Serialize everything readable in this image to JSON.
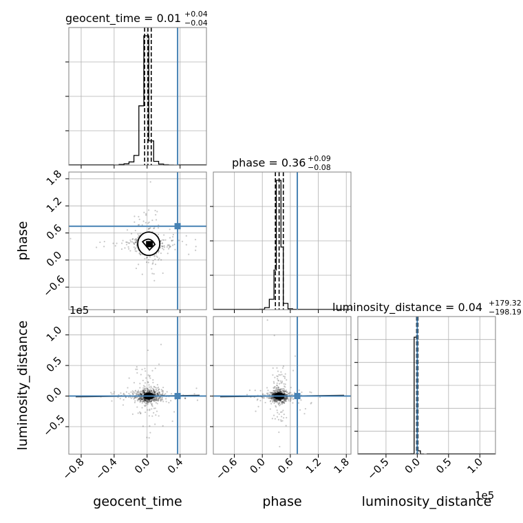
{
  "chart_data": {
    "type": "scatter",
    "subtype": "corner-plot",
    "parameters": [
      "geocent_time",
      "phase",
      "luminosity_distance"
    ],
    "injection": {
      "geocent_time": 0.37,
      "phase": 0.75,
      "luminosity_distance": 0
    },
    "grid": true,
    "panels": {
      "geocent_time_hist": {
        "title": {
          "prefix": "geocent_time = ",
          "value": "0.01",
          "plus": "+0.04",
          "minus": "−0.04"
        },
        "xlim": [
          -0.95,
          0.72
        ],
        "bins": [
          -0.4,
          -0.34,
          -0.28,
          -0.22,
          -0.16,
          -0.1,
          -0.04,
          0.02,
          0.08,
          0.14,
          0.2,
          0.26,
          0.32,
          0.38
        ],
        "counts": [
          0.3,
          1.2,
          2.5,
          6,
          18,
          110,
          240,
          45,
          7,
          2,
          0.8,
          0.3,
          0.2
        ],
        "quantiles": [
          -0.03,
          0.01,
          0.05
        ]
      },
      "phase_hist": {
        "title": {
          "prefix": "phase = ",
          "value": "0.36",
          "plus": "+0.09",
          "minus": "−0.08"
        },
        "xlim": [
          -1.05,
          1.9
        ],
        "bins": [
          -0.05,
          0.05,
          0.15,
          0.25,
          0.3,
          0.35,
          0.4,
          0.45,
          0.55,
          0.65
        ],
        "counts": [
          1,
          5,
          25,
          95,
          310,
          310,
          150,
          15,
          2
        ],
        "quantiles": [
          0.28,
          0.36,
          0.45
        ]
      },
      "luminosity_distance_hist": {
        "title": {
          "prefix": "luminosity_distance = ",
          "value": "0.04",
          "plus": "+179.32",
          "minus": "−198.19"
        },
        "xlim": [
          -0.95,
          1.25
        ],
        "bins": [
          -0.1,
          -0.05,
          0.0,
          0.05,
          0.1,
          0.15
        ],
        "counts": [
          1,
          280,
          8,
          0.5,
          0.2
        ],
        "quantiles": [
          -0.01,
          0.0,
          0.01
        ]
      }
    },
    "axes": {
      "geocent_time": {
        "label": "geocent_time",
        "ticks": [
          -0.8,
          -0.4,
          0.0,
          0.4
        ],
        "tick_labels": [
          "−0.8",
          "−0.4",
          "0.0",
          "0.4"
        ]
      },
      "phase_x": {
        "label": "phase",
        "ticks": [
          -0.6,
          0.0,
          0.6,
          1.2,
          1.8
        ],
        "tick_labels": [
          "−0.6",
          "0.0",
          "0.6",
          "1.2",
          "1.8"
        ]
      },
      "phase_y": {
        "label": "phase",
        "ylim": [
          -1.1,
          1.95
        ],
        "ticks": [
          -0.6,
          0.0,
          0.6,
          1.2,
          1.8
        ],
        "tick_labels": [
          "−0.6",
          "0.0",
          "0.6",
          "1.2",
          "1.8"
        ]
      },
      "luminosity_distance_x": {
        "label": "luminosity_distance",
        "offset": "1e5",
        "ticks": [
          -0.5,
          0.0,
          0.5,
          1.0
        ],
        "tick_labels": [
          "−0.5",
          "0.0",
          "0.5",
          "1.0"
        ]
      },
      "luminosity_distance_y": {
        "label": "luminosity_distance",
        "offset": "1e5",
        "ylim": [
          -0.95,
          1.3
        ],
        "ticks": [
          -0.5,
          0.0,
          0.5,
          1.0
        ],
        "tick_labels": [
          "−0.5",
          "0.0",
          "0.5",
          "1.0"
        ]
      }
    },
    "samples": {
      "geocent_time": {
        "center": 0.02,
        "sd": 0.07
      },
      "phase": {
        "center": 0.36,
        "sd": 0.09
      },
      "luminosity_distance": {
        "center": 0.0,
        "sd": 0.05
      }
    }
  }
}
